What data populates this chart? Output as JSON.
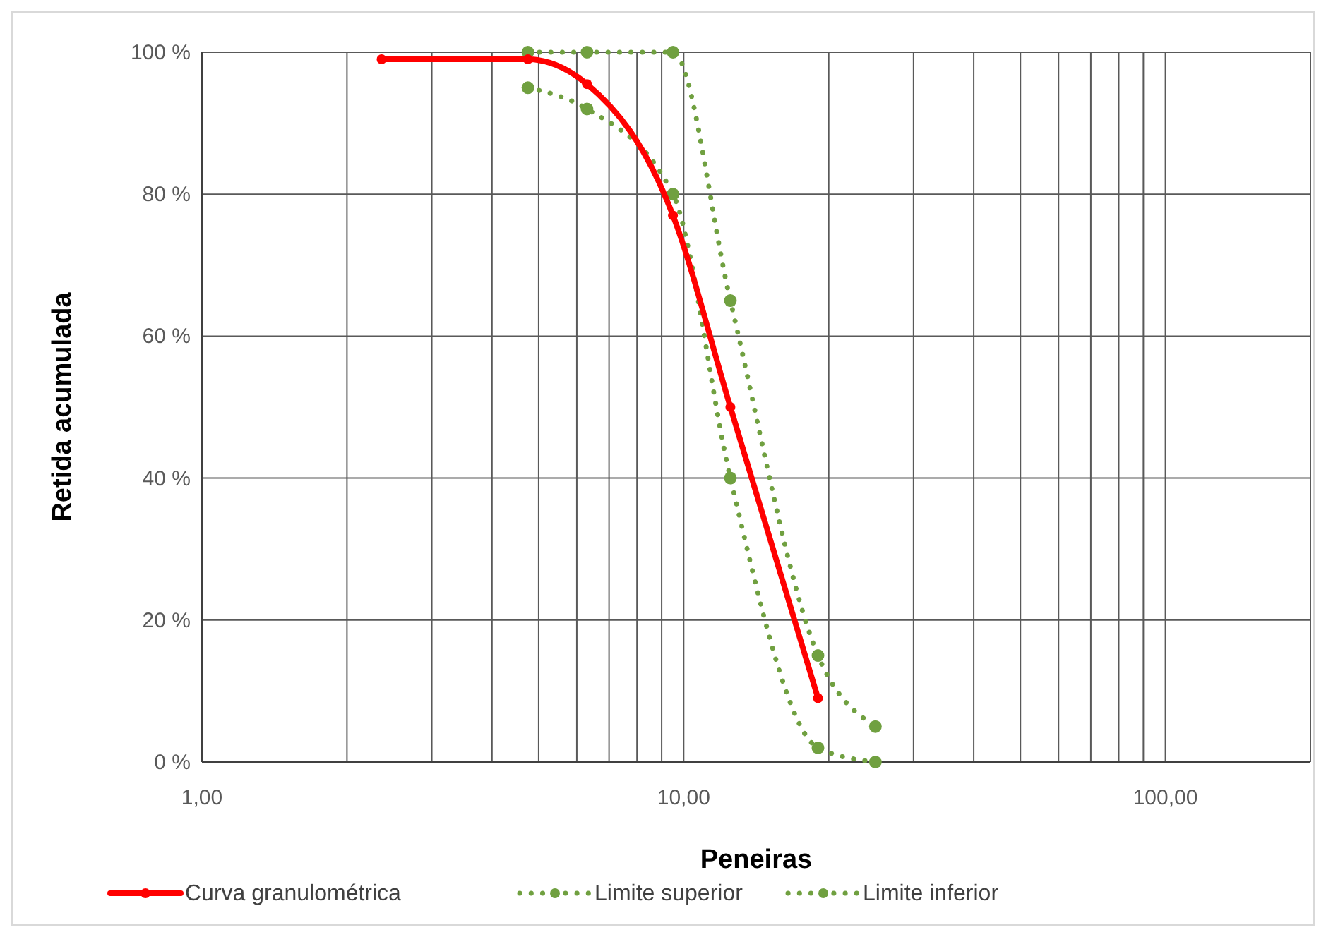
{
  "chart_data": {
    "type": "line",
    "xlabel": "Peneiras",
    "ylabel": "Retida acumulada",
    "log": "x",
    "xlim": [
      1,
      200
    ],
    "ylim": [
      0,
      100
    ],
    "xticks": [
      {
        "value": 1,
        "label": "1,00"
      },
      {
        "value": 2,
        "label": null
      },
      {
        "value": 3,
        "label": null
      },
      {
        "value": 4,
        "label": null
      },
      {
        "value": 5,
        "label": null
      },
      {
        "value": 6,
        "label": null
      },
      {
        "value": 7,
        "label": null
      },
      {
        "value": 8,
        "label": null
      },
      {
        "value": 9,
        "label": null
      },
      {
        "value": 10,
        "label": "10,00"
      },
      {
        "value": 20,
        "label": null
      },
      {
        "value": 30,
        "label": null
      },
      {
        "value": 40,
        "label": null
      },
      {
        "value": 50,
        "label": null
      },
      {
        "value": 60,
        "label": null
      },
      {
        "value": 70,
        "label": null
      },
      {
        "value": 80,
        "label": null
      },
      {
        "value": 90,
        "label": null
      },
      {
        "value": 100,
        "label": "100,00"
      },
      {
        "value": 200,
        "label": null
      }
    ],
    "yticks": [
      {
        "value": 0,
        "label": "0 %"
      },
      {
        "value": 20,
        "label": "20 %"
      },
      {
        "value": 40,
        "label": "40 %"
      },
      {
        "value": 60,
        "label": "60 %"
      },
      {
        "value": 80,
        "label": "80 %"
      },
      {
        "value": 100,
        "label": "100 %"
      }
    ],
    "grid": true,
    "legend": "bottom",
    "marker": "circle",
    "series": [
      {
        "name": "Curva granulométrica",
        "color": "#ff0000",
        "line_style": "solid",
        "x": [
          2.36,
          4.75,
          6.3,
          9.5,
          12.5,
          19
        ],
        "values": [
          99,
          99,
          95.5,
          77,
          50,
          9
        ]
      },
      {
        "name": "Limite superior",
        "color": "#70a040",
        "line_style": "dotted",
        "x": [
          4.75,
          6.3,
          9.5,
          12.5,
          19,
          25
        ],
        "values": [
          100,
          100,
          100,
          65,
          15,
          5
        ]
      },
      {
        "name": "Limite inferior",
        "color": "#70a040",
        "line_style": "dotted",
        "x": [
          4.75,
          6.3,
          9.5,
          12.5,
          19,
          25
        ],
        "values": [
          95,
          92,
          80,
          40,
          2,
          0
        ]
      }
    ]
  }
}
